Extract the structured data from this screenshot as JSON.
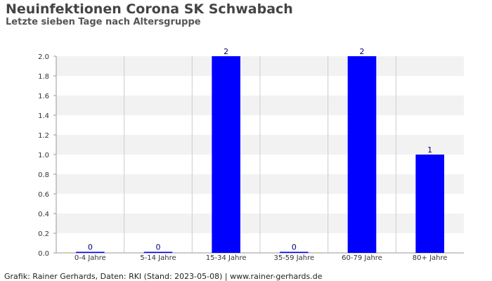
{
  "chart_data": {
    "type": "bar",
    "title": "Neuinfektionen Corona SK Schwabach",
    "subtitle": "Letzte sieben Tage nach Altersgruppe",
    "categories": [
      "0-4 Jahre",
      "5-14 Jahre",
      "15-34 Jahre",
      "35-59 Jahre",
      "60-79 Jahre",
      "80+ Jahre"
    ],
    "values": [
      0,
      0,
      2,
      0,
      2,
      1
    ],
    "data_labels": [
      "0",
      "0",
      "2",
      "0",
      "2",
      "1"
    ],
    "ylim": [
      0,
      2.0
    ],
    "yticks": [
      "0.0",
      "0.2",
      "0.4",
      "0.6",
      "0.8",
      "1.0",
      "1.2",
      "1.4",
      "1.6",
      "1.8",
      "2.0"
    ],
    "xlabel": "",
    "ylabel": "",
    "grid": true,
    "bar_color": "#0000ff",
    "band_color": "#f2f2f2",
    "grid_color": "#cccccc"
  },
  "footer": "Grafik: Rainer Gerhards, Daten: RKI (Stand: 2023-05-08) | www.rainer-gerhards.de"
}
